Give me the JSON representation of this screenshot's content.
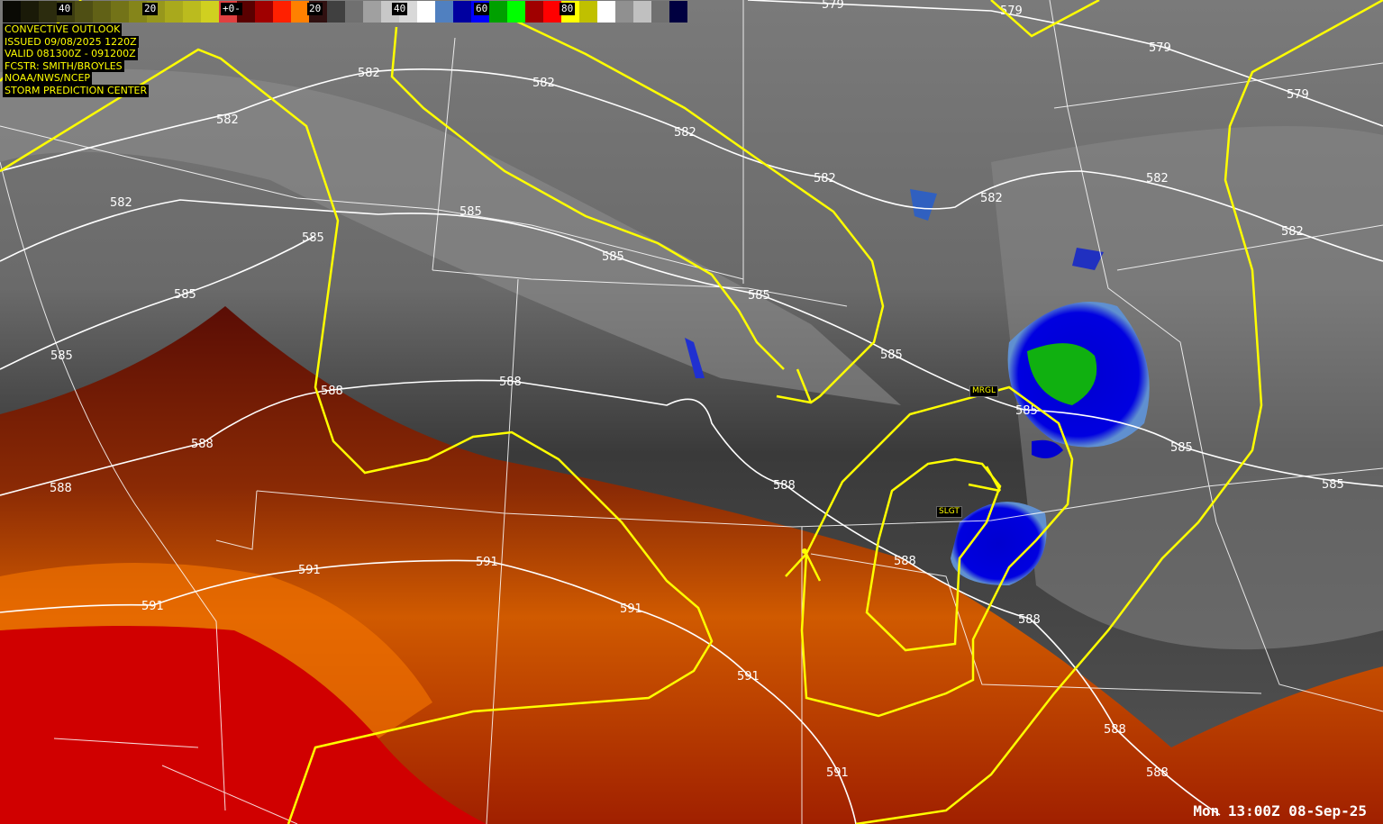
{
  "colorbar": {
    "ticks": [
      "40",
      "20",
      "+0-",
      "20",
      "40",
      "60",
      "80"
    ],
    "colors": [
      "#0a0a05",
      "#1a1a08",
      "#2c2c0e",
      "#3d3d10",
      "#4f4f14",
      "#616116",
      "#737318",
      "#85851a",
      "#97971c",
      "#a9a91c",
      "#bbbb1e",
      "#d0d020",
      "#e04040",
      "#5a0000",
      "#a00000",
      "#ff2000",
      "#ff8000",
      "#301010",
      "#404040",
      "#707070",
      "#a0a0a0",
      "#c8c8c8",
      "#d8d8d8",
      "#ffffff",
      "#5080c0",
      "#0000a0",
      "#0000ff",
      "#00a000",
      "#00ff00",
      "#a00000",
      "#ff0000",
      "#ffff00",
      "#c0c000",
      "#ffffff",
      "#909090",
      "#c0c0c0",
      "#707070",
      "#000040"
    ]
  },
  "info": {
    "lines": [
      "CONVECTIVE OUTLOOK",
      "ISSUED 09/08/2025 1220Z",
      "VALID 081300Z - 091200Z",
      "FCSTR: SMITH/BROYLES",
      "NOAA/NWS/NCEP",
      "STORM PREDICTION CENTER"
    ]
  },
  "risk_labels": {
    "marginal": "MRGL",
    "slight": "SLGT"
  },
  "contour_labels": {
    "c579": [
      "579",
      "579",
      "579",
      "579"
    ],
    "c582": [
      "582",
      "582",
      "582",
      "582",
      "582",
      "582",
      "582",
      "582",
      "582"
    ],
    "c585": [
      "585",
      "585",
      "585",
      "585",
      "585",
      "585",
      "585",
      "585",
      "585",
      "585"
    ],
    "c588": [
      "588",
      "588",
      "588",
      "588",
      "588",
      "588",
      "588",
      "588",
      "588"
    ],
    "c591": [
      "591",
      "591",
      "591",
      "591",
      "591",
      "591"
    ]
  },
  "timestamp": "Mon 13:00Z 08-Sep-25",
  "colors": {
    "outlook": "#ffff00",
    "contour": "#ffffff",
    "boundaries": "#ffffff",
    "cold_tops": "#0000e0",
    "very_cold_tops": "#00c000",
    "warm_band": "#ff8000"
  }
}
